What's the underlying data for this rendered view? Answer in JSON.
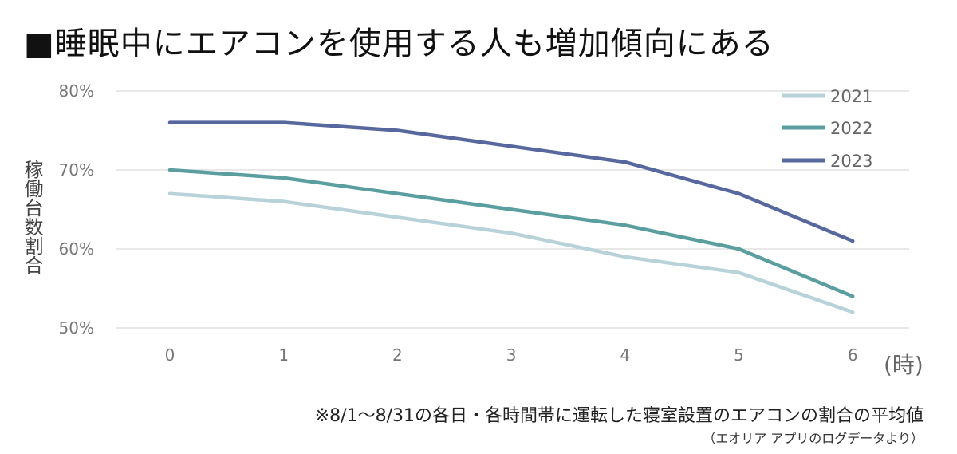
{
  "title": "■睡眠中にエアコンを使用する人も増加傾向にある",
  "note": "※8/1～8/31の各日・各時間帯に運転した寝室設置のエアコンの割合の平均値",
  "source": "（エオリア アプリのログデータより）",
  "chart_data": {
    "type": "line",
    "ylabel": "稼働台数割合",
    "xunit": "(時)",
    "categories": [
      "0",
      "1",
      "2",
      "3",
      "4",
      "5",
      "6"
    ],
    "ylim": [
      50,
      80
    ],
    "yticks": [
      "50%",
      "60%",
      "70%",
      "80%"
    ],
    "ytick_values": [
      50,
      60,
      70,
      80
    ],
    "grid": true,
    "legend_position": "top-right",
    "series": [
      {
        "name": "2021",
        "color": "#b7d2d8",
        "values": [
          67,
          66,
          64,
          62,
          59,
          57,
          52
        ]
      },
      {
        "name": "2022",
        "color": "#5b9e9f",
        "values": [
          70,
          69,
          67,
          65,
          63,
          60,
          54
        ]
      },
      {
        "name": "2023",
        "color": "#56689d",
        "values": [
          76,
          76,
          75,
          73,
          71,
          67,
          61
        ]
      }
    ]
  }
}
